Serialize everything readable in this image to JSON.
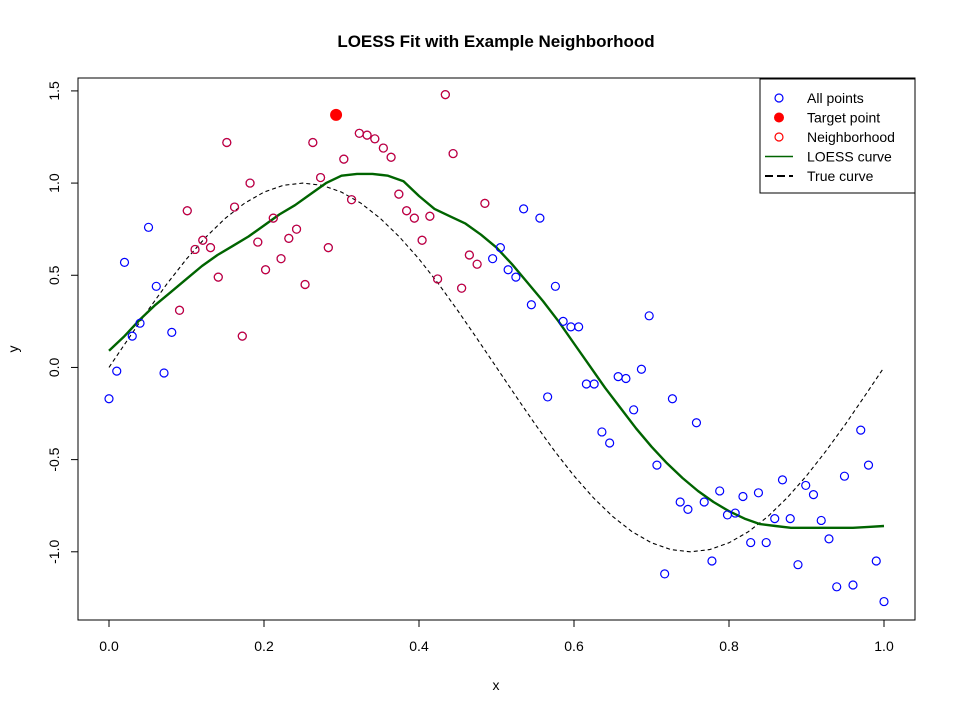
{
  "chart_data": {
    "type": "scatter",
    "title": "LOESS Fit with Example Neighborhood",
    "xlabel": "x",
    "ylabel": "y",
    "xlim": [
      -0.04,
      1.04
    ],
    "ylim": [
      -1.37,
      1.57
    ],
    "x_ticks": [
      0.0,
      0.2,
      0.4,
      0.6,
      0.8,
      1.0
    ],
    "x_tick_labels": [
      "0.0",
      "0.2",
      "0.4",
      "0.6",
      "0.8",
      "1.0"
    ],
    "y_ticks": [
      -1.0,
      -0.5,
      0.0,
      0.5,
      1.0,
      1.5
    ],
    "y_tick_labels": [
      "-1.0",
      "-0.5",
      "0.0",
      "0.5",
      "1.0",
      "1.5"
    ],
    "grid": false,
    "legend_position": "top-right",
    "legend": [
      {
        "label": "All points",
        "symbol": "open-circle",
        "color": "#0000ff"
      },
      {
        "label": "Target point",
        "symbol": "filled-circle",
        "color": "#ff0000"
      },
      {
        "label": "Neighborhood",
        "symbol": "open-circle",
        "color": "#ff0000"
      },
      {
        "label": "LOESS curve",
        "symbol": "line",
        "color": "#006400"
      },
      {
        "label": "True curve",
        "symbol": "dashed-line",
        "color": "#000000"
      }
    ],
    "colors": {
      "all_points": "#0000ff",
      "target": "#ff0000",
      "neighborhood": "#ff0000",
      "loess": "#006400",
      "true_curve": "#000000"
    },
    "all_points": [
      [
        0.0,
        -0.17
      ],
      [
        0.01,
        -0.02
      ],
      [
        0.02,
        0.57
      ],
      [
        0.03,
        0.17
      ],
      [
        0.04,
        0.24
      ],
      [
        0.051,
        0.76
      ],
      [
        0.061,
        0.44
      ],
      [
        0.071,
        -0.03
      ],
      [
        0.081,
        0.19
      ],
      [
        0.495,
        0.59
      ],
      [
        0.505,
        0.65
      ],
      [
        0.515,
        0.53
      ],
      [
        0.525,
        0.49
      ],
      [
        0.535,
        0.86
      ],
      [
        0.545,
        0.34
      ],
      [
        0.556,
        0.81
      ],
      [
        0.566,
        -0.16
      ],
      [
        0.576,
        0.44
      ],
      [
        0.586,
        0.25
      ],
      [
        0.596,
        0.22
      ],
      [
        0.606,
        0.22
      ],
      [
        0.616,
        -0.09
      ],
      [
        0.626,
        -0.09
      ],
      [
        0.636,
        -0.35
      ],
      [
        0.646,
        -0.41
      ],
      [
        0.657,
        -0.05
      ],
      [
        0.667,
        -0.06
      ],
      [
        0.677,
        -0.23
      ],
      [
        0.687,
        -0.01
      ],
      [
        0.697,
        0.28
      ],
      [
        0.707,
        -0.53
      ],
      [
        0.717,
        -1.12
      ],
      [
        0.727,
        -0.17
      ],
      [
        0.737,
        -0.73
      ],
      [
        0.747,
        -0.77
      ],
      [
        0.758,
        -0.3
      ],
      [
        0.768,
        -0.73
      ],
      [
        0.778,
        -1.05
      ],
      [
        0.788,
        -0.67
      ],
      [
        0.798,
        -0.8
      ],
      [
        0.808,
        -0.79
      ],
      [
        0.818,
        -0.7
      ],
      [
        0.828,
        -0.95
      ],
      [
        0.838,
        -0.68
      ],
      [
        0.848,
        -0.95
      ],
      [
        0.859,
        -0.82
      ],
      [
        0.869,
        -0.61
      ],
      [
        0.879,
        -0.82
      ],
      [
        0.889,
        -1.07
      ],
      [
        0.899,
        -0.64
      ],
      [
        0.909,
        -0.69
      ],
      [
        0.919,
        -0.83
      ],
      [
        0.929,
        -0.93
      ],
      [
        0.939,
        -1.19
      ],
      [
        0.949,
        -0.59
      ],
      [
        0.96,
        -1.18
      ],
      [
        0.97,
        -0.34
      ],
      [
        0.98,
        -0.53
      ],
      [
        0.99,
        -1.05
      ],
      [
        1.0,
        -1.27
      ]
    ],
    "neighborhood_points": [
      [
        0.091,
        0.31
      ],
      [
        0.101,
        0.85
      ],
      [
        0.111,
        0.64
      ],
      [
        0.121,
        0.69
      ],
      [
        0.131,
        0.65
      ],
      [
        0.141,
        0.49
      ],
      [
        0.152,
        1.22
      ],
      [
        0.162,
        0.87
      ],
      [
        0.172,
        0.17
      ],
      [
        0.182,
        1.0
      ],
      [
        0.192,
        0.68
      ],
      [
        0.202,
        0.53
      ],
      [
        0.212,
        0.81
      ],
      [
        0.222,
        0.59
      ],
      [
        0.232,
        0.7
      ],
      [
        0.242,
        0.75
      ],
      [
        0.253,
        0.45
      ],
      [
        0.263,
        1.22
      ],
      [
        0.273,
        1.03
      ],
      [
        0.283,
        0.65
      ],
      [
        0.303,
        1.13
      ],
      [
        0.313,
        0.91
      ],
      [
        0.323,
        1.27
      ],
      [
        0.333,
        1.26
      ],
      [
        0.343,
        1.24
      ],
      [
        0.354,
        1.19
      ],
      [
        0.364,
        1.14
      ],
      [
        0.374,
        0.94
      ],
      [
        0.384,
        0.85
      ],
      [
        0.394,
        0.81
      ],
      [
        0.404,
        0.69
      ],
      [
        0.414,
        0.82
      ],
      [
        0.424,
        0.48
      ],
      [
        0.434,
        1.48
      ],
      [
        0.444,
        1.16
      ],
      [
        0.455,
        0.43
      ],
      [
        0.465,
        0.61
      ],
      [
        0.475,
        0.56
      ],
      [
        0.485,
        0.89
      ]
    ],
    "target_point": [
      0.293,
      1.37
    ],
    "loess_curve": [
      [
        0.0,
        0.09
      ],
      [
        0.02,
        0.17
      ],
      [
        0.04,
        0.26
      ],
      [
        0.06,
        0.34
      ],
      [
        0.08,
        0.41
      ],
      [
        0.1,
        0.48
      ],
      [
        0.12,
        0.55
      ],
      [
        0.14,
        0.61
      ],
      [
        0.16,
        0.66
      ],
      [
        0.18,
        0.71
      ],
      [
        0.2,
        0.77
      ],
      [
        0.22,
        0.83
      ],
      [
        0.24,
        0.88
      ],
      [
        0.26,
        0.94
      ],
      [
        0.28,
        1.0
      ],
      [
        0.3,
        1.04
      ],
      [
        0.32,
        1.05
      ],
      [
        0.34,
        1.05
      ],
      [
        0.36,
        1.04
      ],
      [
        0.38,
        1.01
      ],
      [
        0.4,
        0.93
      ],
      [
        0.42,
        0.86
      ],
      [
        0.44,
        0.82
      ],
      [
        0.46,
        0.78
      ],
      [
        0.48,
        0.72
      ],
      [
        0.5,
        0.65
      ],
      [
        0.52,
        0.56
      ],
      [
        0.54,
        0.46
      ],
      [
        0.56,
        0.36
      ],
      [
        0.58,
        0.25
      ],
      [
        0.6,
        0.13
      ],
      [
        0.62,
        0.01
      ],
      [
        0.64,
        -0.11
      ],
      [
        0.66,
        -0.22
      ],
      [
        0.68,
        -0.33
      ],
      [
        0.7,
        -0.43
      ],
      [
        0.72,
        -0.52
      ],
      [
        0.74,
        -0.6
      ],
      [
        0.76,
        -0.67
      ],
      [
        0.78,
        -0.73
      ],
      [
        0.8,
        -0.78
      ],
      [
        0.82,
        -0.82
      ],
      [
        0.84,
        -0.85
      ],
      [
        0.86,
        -0.86
      ],
      [
        0.88,
        -0.87
      ],
      [
        0.9,
        -0.87
      ],
      [
        0.92,
        -0.87
      ],
      [
        0.94,
        -0.87
      ],
      [
        0.96,
        -0.87
      ],
      [
        0.98,
        -0.865
      ],
      [
        1.0,
        -0.86
      ]
    ],
    "true_curve": [
      [
        0.0,
        0.0
      ],
      [
        0.025,
        0.156
      ],
      [
        0.05,
        0.309
      ],
      [
        0.075,
        0.454
      ],
      [
        0.1,
        0.588
      ],
      [
        0.125,
        0.707
      ],
      [
        0.15,
        0.809
      ],
      [
        0.175,
        0.891
      ],
      [
        0.2,
        0.951
      ],
      [
        0.225,
        0.988
      ],
      [
        0.25,
        1.0
      ],
      [
        0.275,
        0.988
      ],
      [
        0.3,
        0.951
      ],
      [
        0.325,
        0.891
      ],
      [
        0.35,
        0.809
      ],
      [
        0.375,
        0.707
      ],
      [
        0.4,
        0.588
      ],
      [
        0.425,
        0.454
      ],
      [
        0.45,
        0.309
      ],
      [
        0.475,
        0.156
      ],
      [
        0.5,
        0.0
      ],
      [
        0.525,
        -0.156
      ],
      [
        0.55,
        -0.309
      ],
      [
        0.575,
        -0.454
      ],
      [
        0.6,
        -0.588
      ],
      [
        0.625,
        -0.707
      ],
      [
        0.65,
        -0.809
      ],
      [
        0.675,
        -0.891
      ],
      [
        0.7,
        -0.951
      ],
      [
        0.725,
        -0.988
      ],
      [
        0.75,
        -1.0
      ],
      [
        0.775,
        -0.988
      ],
      [
        0.8,
        -0.951
      ],
      [
        0.825,
        -0.891
      ],
      [
        0.85,
        -0.809
      ],
      [
        0.875,
        -0.707
      ],
      [
        0.9,
        -0.588
      ],
      [
        0.925,
        -0.454
      ],
      [
        0.95,
        -0.309
      ],
      [
        0.975,
        -0.156
      ],
      [
        1.0,
        0.0
      ]
    ]
  }
}
